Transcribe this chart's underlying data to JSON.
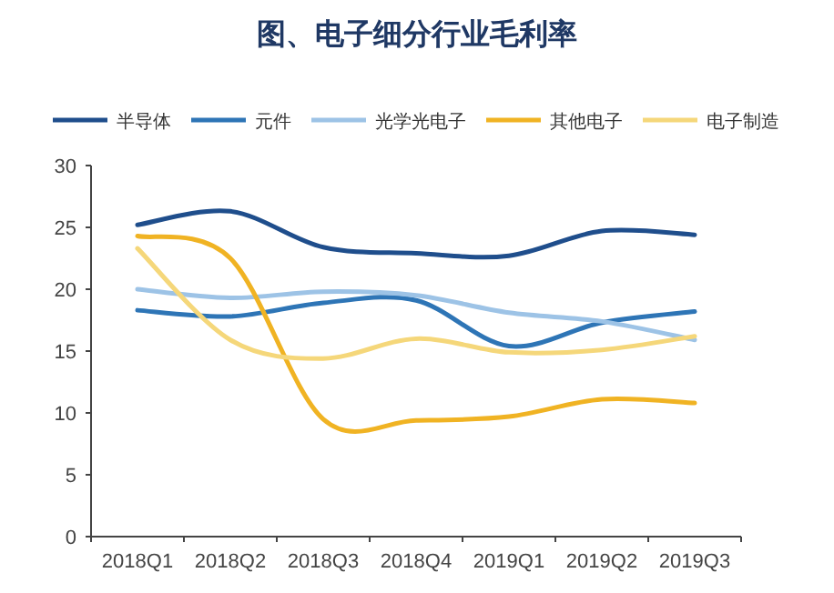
{
  "chart_data": {
    "type": "line",
    "title": "图、电子细分行业毛利率",
    "categories": [
      "2018Q1",
      "2018Q2",
      "2018Q3",
      "2018Q4",
      "2019Q1",
      "2019Q2",
      "2019Q3"
    ],
    "series": [
      {
        "name": "半导体",
        "color": "#1f4e8c",
        "values": [
          25.2,
          26.3,
          23.4,
          22.9,
          22.7,
          24.7,
          24.4
        ]
      },
      {
        "name": "元件",
        "color": "#2e75b6",
        "values": [
          18.3,
          17.8,
          18.9,
          19.1,
          15.4,
          17.3,
          18.2
        ]
      },
      {
        "name": "光学光电子",
        "color": "#9dc3e6",
        "values": [
          20.0,
          19.3,
          19.8,
          19.5,
          18.1,
          17.4,
          15.9
        ]
      },
      {
        "name": "其他电子",
        "color": "#f0b323",
        "values": [
          24.3,
          22.5,
          9.5,
          9.4,
          9.7,
          11.1,
          10.8
        ]
      },
      {
        "name": "电子制造",
        "color": "#f5d77a",
        "values": [
          23.3,
          15.9,
          14.4,
          16.0,
          14.9,
          15.1,
          16.2
        ]
      }
    ],
    "ylim": [
      0,
      30
    ],
    "yticks": [
      0,
      5,
      10,
      15,
      20,
      25,
      30
    ],
    "legend": "top",
    "grid": false,
    "marker": "none",
    "line_style": "solid"
  }
}
